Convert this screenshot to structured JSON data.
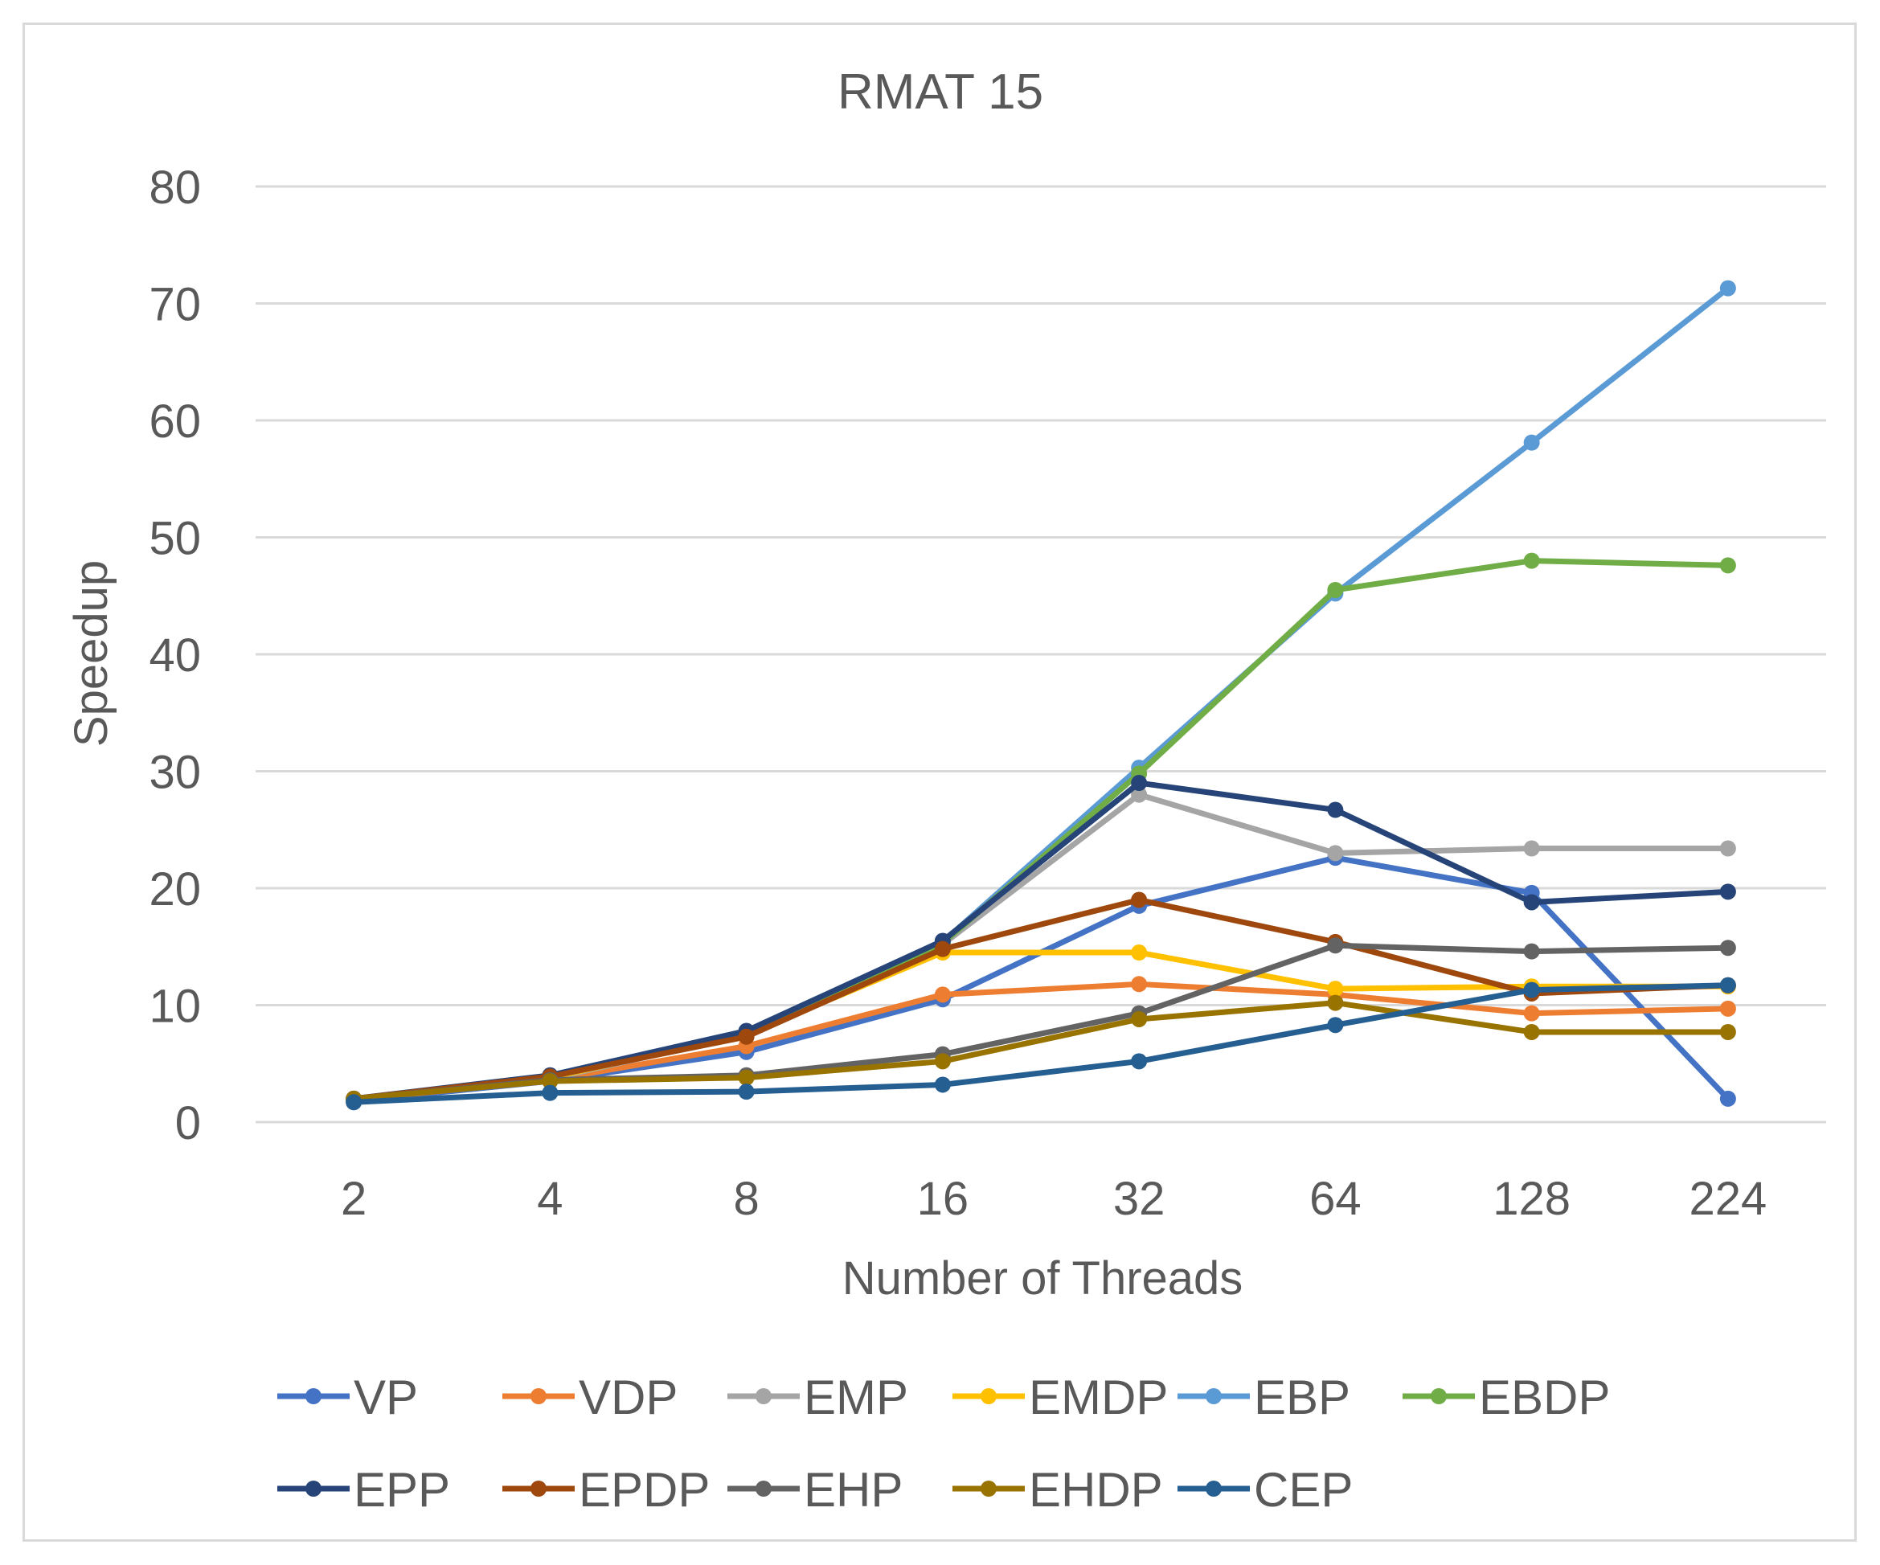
{
  "chart_data": {
    "type": "line",
    "title": "RMAT 15",
    "xlabel": "Number of Threads",
    "ylabel": "Speedup",
    "categories": [
      "2",
      "4",
      "8",
      "16",
      "32",
      "64",
      "128",
      "224"
    ],
    "ylim": [
      0,
      80
    ],
    "yticks": [
      0,
      10,
      20,
      30,
      40,
      50,
      60,
      70,
      80
    ],
    "grid": true,
    "legend_position": "bottom",
    "series": [
      {
        "name": "VP",
        "color": "#4472C4",
        "values": [
          1.8,
          3.5,
          6.0,
          10.5,
          18.5,
          22.6,
          19.6,
          2.0
        ]
      },
      {
        "name": "VDP",
        "color": "#ED7D31",
        "values": [
          1.9,
          3.6,
          6.5,
          10.9,
          11.8,
          10.9,
          9.3,
          9.7
        ]
      },
      {
        "name": "EMP",
        "color": "#A5A5A5",
        "values": [
          1.9,
          3.7,
          7.5,
          15.2,
          28.0,
          23.0,
          23.4,
          23.4
        ]
      },
      {
        "name": "EMDP",
        "color": "#FFC000",
        "values": [
          1.9,
          3.8,
          7.5,
          14.5,
          14.5,
          11.4,
          11.6,
          11.6
        ]
      },
      {
        "name": "EBP",
        "color": "#5B9BD5",
        "values": [
          1.9,
          3.9,
          7.6,
          15.4,
          30.3,
          45.2,
          58.1,
          71.3
        ]
      },
      {
        "name": "EBDP",
        "color": "#70AD47",
        "values": [
          1.9,
          3.9,
          7.6,
          15.3,
          29.8,
          45.5,
          48.0,
          47.6
        ]
      },
      {
        "name": "EPP",
        "color": "#264478",
        "values": [
          2.0,
          4.0,
          7.8,
          15.5,
          29.0,
          26.7,
          18.8,
          19.7
        ]
      },
      {
        "name": "EPDP",
        "color": "#9E480E",
        "values": [
          2.0,
          3.9,
          7.3,
          14.8,
          19.0,
          15.4,
          11.0,
          11.7
        ]
      },
      {
        "name": "EHP",
        "color": "#636363",
        "values": [
          2.0,
          3.6,
          4.0,
          5.8,
          9.3,
          15.1,
          14.6,
          14.9
        ]
      },
      {
        "name": "EHDP",
        "color": "#997300",
        "values": [
          2.0,
          3.5,
          3.8,
          5.2,
          8.8,
          10.2,
          7.7,
          7.7
        ]
      },
      {
        "name": "CEP",
        "color": "#255E91",
        "values": [
          1.7,
          2.5,
          2.6,
          3.2,
          5.2,
          8.3,
          11.3,
          11.7
        ]
      }
    ]
  }
}
